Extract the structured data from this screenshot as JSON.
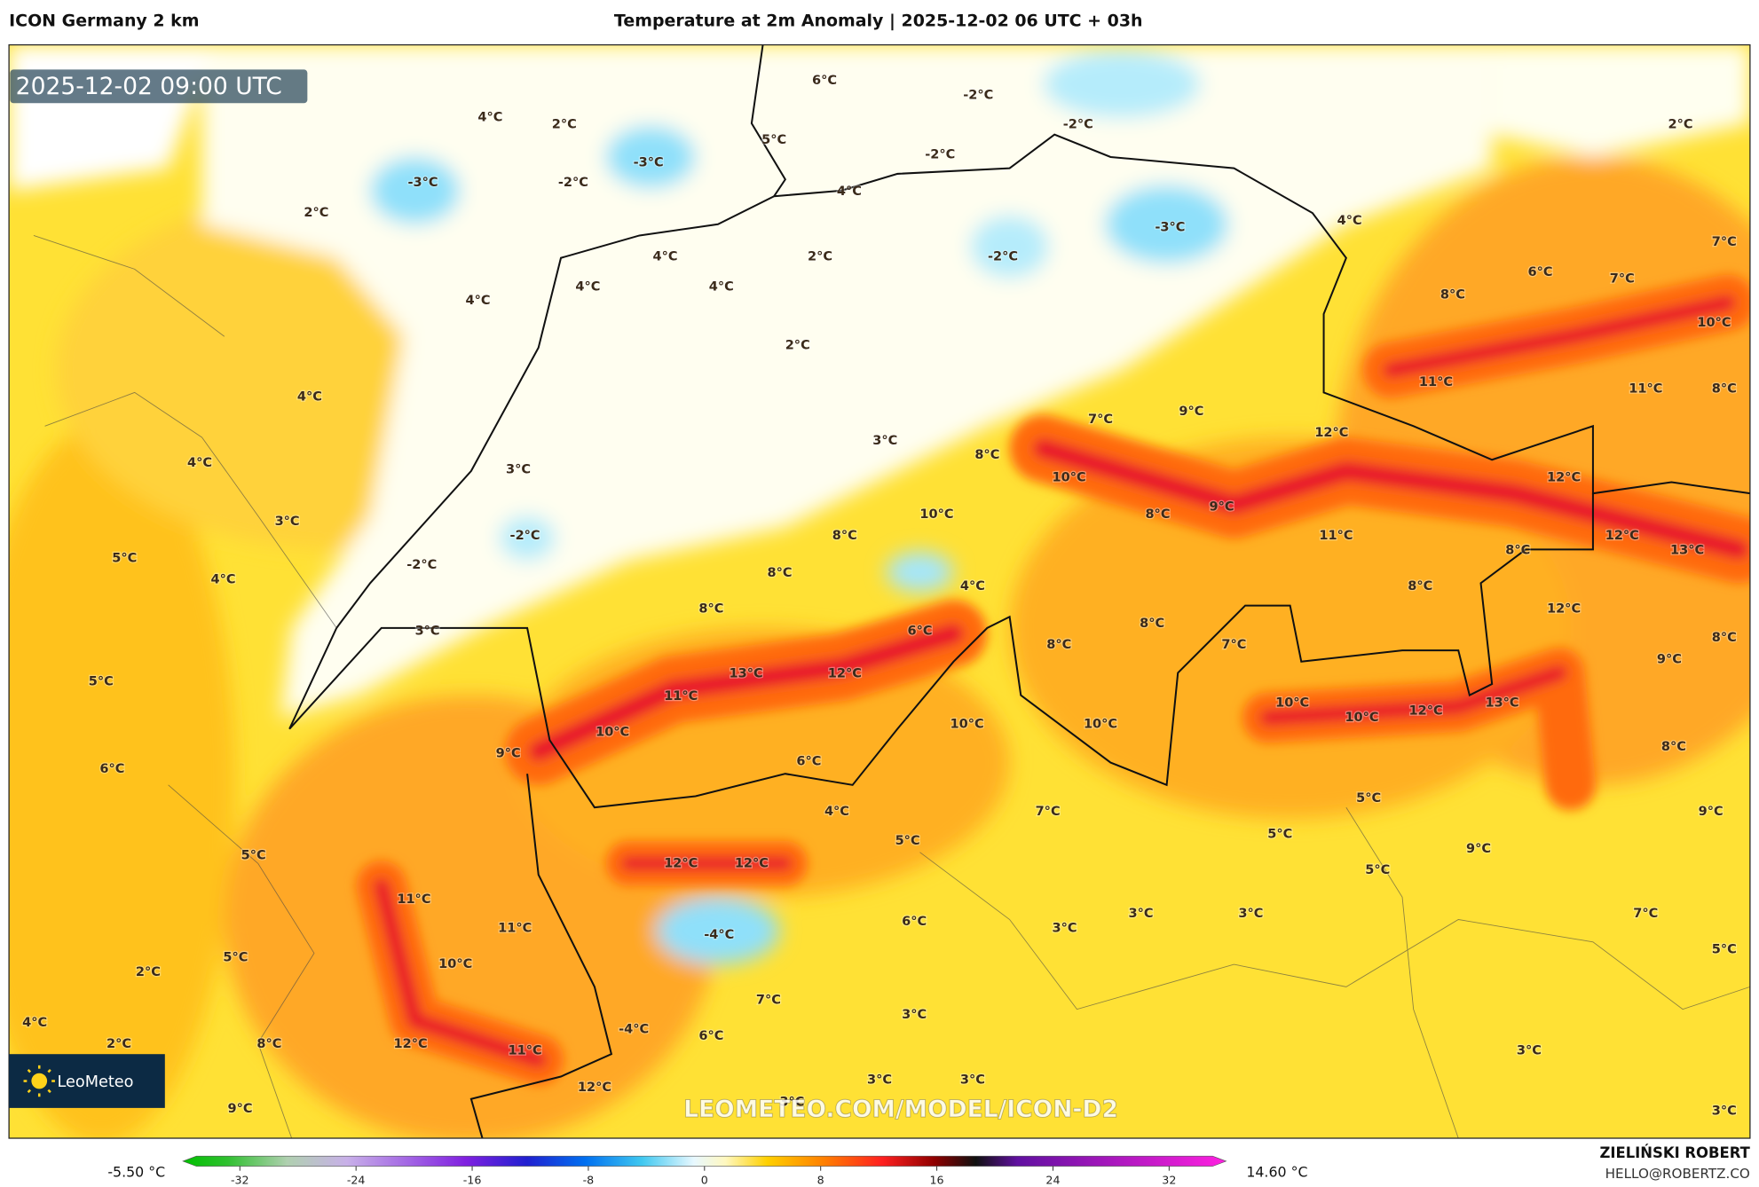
{
  "header": {
    "left": "ICON Germany 2 km",
    "title": "Temperature at 2m Anomaly | 2025-12-02 06 UTC + 03h"
  },
  "map": {
    "timestamp": "2025-12-02 09:00 UTC",
    "watermark": "LEOMETEO.COM/MODEL/ICON-D2",
    "logo": "LeoMeteo",
    "labels": [
      "4°C",
      "2°C",
      "6°C",
      "5°C",
      "-2°C",
      "-2°C",
      "-2°C",
      "-3°C",
      "-2°C",
      "-3°C",
      "2°C",
      "4°C",
      "2°C",
      "-3°C",
      "4°C",
      "4°C",
      "2°C",
      "-2°C",
      "4°C",
      "4°C",
      "4°C",
      "6°C",
      "7°C",
      "7°C",
      "8°C",
      "10°C",
      "2°C",
      "4°C",
      "11°C",
      "11°C",
      "8°C",
      "7°C",
      "9°C",
      "3°C",
      "12°C",
      "4°C",
      "3°C",
      "8°C",
      "10°C",
      "12°C",
      "3°C",
      "10°C",
      "8°C",
      "9°C",
      "-2°C",
      "8°C",
      "11°C",
      "12°C",
      "13°C",
      "5°C",
      "-2°C",
      "8°C",
      "4°C",
      "8°C",
      "4°C",
      "8°C",
      "8°C",
      "12°C",
      "3°C",
      "6°C",
      "8°C",
      "8°C",
      "7°C",
      "8°C",
      "9°C",
      "5°C",
      "13°C",
      "12°C",
      "11°C",
      "10°C",
      "10°C",
      "12°C",
      "13°C",
      "10°C",
      "10°C",
      "10°C",
      "9°C",
      "8°C",
      "6°C",
      "6°C",
      "5°C",
      "4°C",
      "7°C",
      "9°C",
      "5°C",
      "5°C",
      "5°C",
      "12°C",
      "12°C",
      "5°C",
      "9°C",
      "11°C",
      "11°C",
      "6°C",
      "3°C",
      "3°C",
      "3°C",
      "7°C",
      "-4°C",
      "10°C",
      "5°C",
      "2°C",
      "5°C",
      "7°C",
      "3°C",
      "4°C",
      "-4°C",
      "2°C",
      "8°C",
      "12°C",
      "11°C",
      "6°C",
      "3°C",
      "12°C",
      "3°C",
      "3°C",
      "3°C",
      "9°C",
      "3°C"
    ]
  },
  "colorbar": {
    "min_label": "-5.50 °C",
    "max_label": "14.60 °C",
    "range": [
      -35,
      35
    ],
    "ticks": [
      -32,
      -24,
      -16,
      -8,
      0,
      8,
      16,
      24,
      32
    ]
  },
  "footer": {
    "author": "ZIELIŃSKI ROBERT",
    "email": "HELLO@ROBERTZ.CO"
  }
}
